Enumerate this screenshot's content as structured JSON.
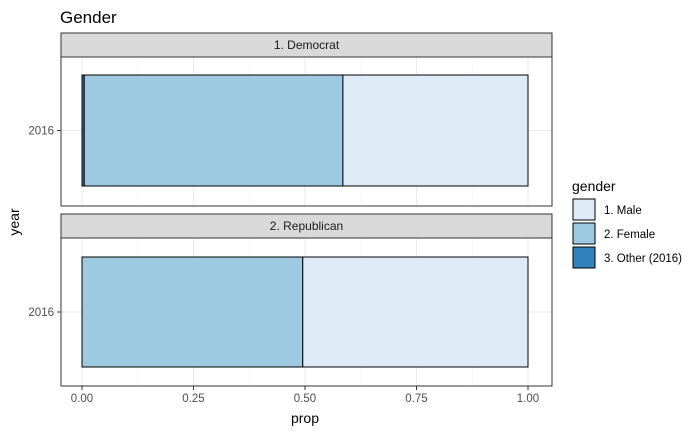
{
  "chart_data": {
    "type": "bar",
    "orientation": "horizontal",
    "stacked": true,
    "title": "Gender",
    "xlabel": "prop",
    "ylabel": "year",
    "xlim": [
      0,
      1
    ],
    "x_ticks": [
      "0.00",
      "0.25",
      "0.50",
      "0.75",
      "1.00"
    ],
    "x_tick_values": [
      0,
      0.25,
      0.5,
      0.75,
      1.0
    ],
    "grid": true,
    "legend": {
      "title": "gender",
      "placement": "right",
      "items": [
        {
          "label": "1. Male",
          "color": "#deebf7"
        },
        {
          "label": "2. Female",
          "color": "#9ecae1"
        },
        {
          "label": "3. Other (2016)",
          "color": "#3182bd"
        }
      ]
    },
    "panels": [
      {
        "label": "1. Democrat",
        "category": "2016",
        "segments": [
          {
            "series": "3. Other (2016)",
            "value": 0.005
          },
          {
            "series": "2. Female",
            "value": 0.58
          },
          {
            "series": "1. Male",
            "value": 0.415
          }
        ]
      },
      {
        "label": "2. Republican",
        "category": "2016",
        "segments": [
          {
            "series": "3. Other (2016)",
            "value": 0.0
          },
          {
            "series": "2. Female",
            "value": 0.495
          },
          {
            "series": "1. Male",
            "value": 0.505
          }
        ]
      }
    ]
  }
}
